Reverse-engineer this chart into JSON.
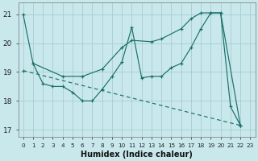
{
  "xlabel": "Humidex (Indice chaleur)",
  "xlim": [
    -0.5,
    23.5
  ],
  "ylim": [
    16.75,
    21.4
  ],
  "yticks": [
    17,
    18,
    19,
    20,
    21
  ],
  "xticks": [
    0,
    1,
    2,
    3,
    4,
    5,
    6,
    7,
    8,
    9,
    10,
    11,
    12,
    13,
    14,
    15,
    16,
    17,
    18,
    19,
    20,
    21,
    22,
    23
  ],
  "bg_color": "#c8e8ec",
  "line_color": "#1a7068",
  "grid_color": "#a8ccd0",
  "series": [
    {
      "x": [
        0,
        1,
        2,
        3,
        4,
        5,
        6,
        7,
        8,
        9,
        10,
        11,
        12,
        13,
        14,
        15,
        16,
        17,
        18,
        19,
        20,
        21,
        22
      ],
      "y": [
        21.0,
        19.3,
        18.6,
        18.5,
        18.5,
        18.3,
        18.0,
        18.0,
        18.4,
        18.85,
        19.35,
        20.55,
        18.8,
        18.85,
        18.85,
        19.15,
        19.3,
        19.85,
        20.5,
        21.05,
        21.05,
        17.8,
        17.15
      ]
    },
    {
      "x": [
        1,
        4,
        6,
        8,
        10,
        11,
        13,
        14,
        16,
        17,
        18,
        19,
        20,
        22
      ],
      "y": [
        19.3,
        18.85,
        18.85,
        19.1,
        19.85,
        20.1,
        20.05,
        20.15,
        20.5,
        20.85,
        21.05,
        21.05,
        21.05,
        17.15
      ]
    },
    {
      "x": [
        0,
        22
      ],
      "y": [
        19.05,
        17.15
      ],
      "dashed": true
    }
  ]
}
